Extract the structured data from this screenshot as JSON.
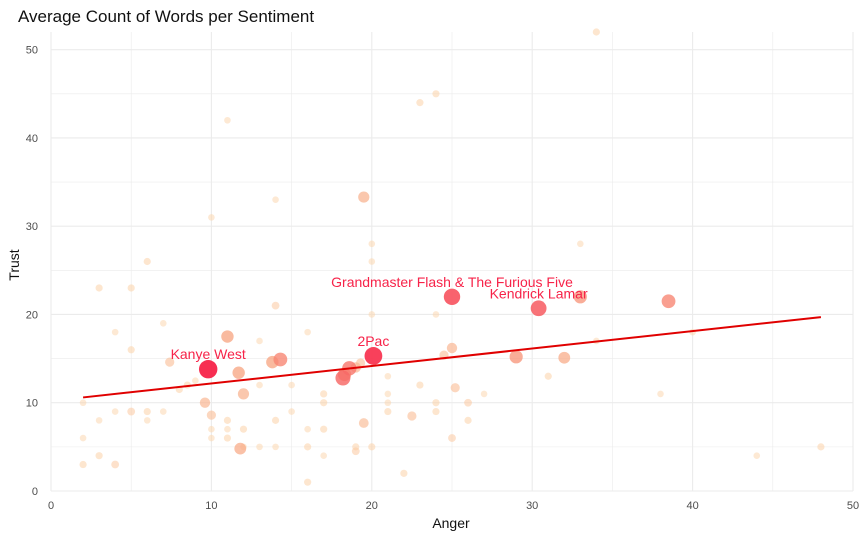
{
  "chart_data": {
    "type": "scatter",
    "title": "Average Count of Words per Sentiment",
    "xlabel": "Anger",
    "ylabel": "Trust",
    "xlim": [
      0,
      50
    ],
    "ylim": [
      0,
      52
    ],
    "xticks": [
      0,
      10,
      20,
      30,
      40,
      50
    ],
    "yticks": [
      0,
      10,
      20,
      30,
      40,
      50
    ],
    "grid": true,
    "colors": {
      "low": "#fde0b4",
      "mid": "#f7a07c",
      "high": "#f72349",
      "trend": "#e00000",
      "grid": "#ebebeb"
    },
    "trend_line": {
      "x": [
        2,
        48
      ],
      "y": [
        10.6,
        19.7
      ]
    },
    "points": [
      {
        "x": 34,
        "y": 52,
        "w": 0.15
      },
      {
        "x": 24,
        "y": 45,
        "w": 0.15
      },
      {
        "x": 23,
        "y": 44,
        "w": 0.15
      },
      {
        "x": 11,
        "y": 42,
        "w": 0.1
      },
      {
        "x": 19.5,
        "y": 33.3,
        "w": 0.45
      },
      {
        "x": 14,
        "y": 33,
        "w": 0.1
      },
      {
        "x": 10,
        "y": 31,
        "w": 0.1
      },
      {
        "x": 33,
        "y": 28,
        "w": 0.1
      },
      {
        "x": 20,
        "y": 28,
        "w": 0.1
      },
      {
        "x": 6,
        "y": 26,
        "w": 0.15
      },
      {
        "x": 20,
        "y": 26,
        "w": 0.1
      },
      {
        "x": 3,
        "y": 23,
        "w": 0.15
      },
      {
        "x": 5,
        "y": 23,
        "w": 0.15
      },
      {
        "x": 14,
        "y": 21,
        "w": 0.2
      },
      {
        "x": 24,
        "y": 20,
        "w": 0.1
      },
      {
        "x": 20,
        "y": 20,
        "w": 0.1
      },
      {
        "x": 7,
        "y": 19,
        "w": 0.1
      },
      {
        "x": 4,
        "y": 18,
        "w": 0.1
      },
      {
        "x": 16,
        "y": 18,
        "w": 0.1
      },
      {
        "x": 13,
        "y": 17,
        "w": 0.1
      },
      {
        "x": 11,
        "y": 17.5,
        "w": 0.55
      },
      {
        "x": 5,
        "y": 16,
        "w": 0.15
      },
      {
        "x": 25,
        "y": 16.2,
        "w": 0.4
      },
      {
        "x": 24.5,
        "y": 15.4,
        "w": 0.3
      },
      {
        "x": 29,
        "y": 15.2,
        "w": 0.6
      },
      {
        "x": 32,
        "y": 15.1,
        "w": 0.5
      },
      {
        "x": 38.5,
        "y": 21.5,
        "w": 0.65
      },
      {
        "x": 33,
        "y": 22,
        "w": 0.6
      },
      {
        "x": 14.3,
        "y": 14.9,
        "w": 0.65
      },
      {
        "x": 13.8,
        "y": 14.6,
        "w": 0.55
      },
      {
        "x": 7.4,
        "y": 14.6,
        "w": 0.3
      },
      {
        "x": 11.7,
        "y": 13.4,
        "w": 0.55
      },
      {
        "x": 19,
        "y": 14,
        "w": 0.4
      },
      {
        "x": 19.3,
        "y": 14.5,
        "w": 0.3
      },
      {
        "x": 18.6,
        "y": 13.9,
        "w": 0.7
      },
      {
        "x": 18.3,
        "y": 13.2,
        "w": 0.6
      },
      {
        "x": 18.2,
        "y": 12.8,
        "w": 0.75
      },
      {
        "x": 12,
        "y": 11,
        "w": 0.45
      },
      {
        "x": 8,
        "y": 11.5,
        "w": 0.15
      },
      {
        "x": 8.5,
        "y": 12,
        "w": 0.15
      },
      {
        "x": 9,
        "y": 12.5,
        "w": 0.1
      },
      {
        "x": 13,
        "y": 12,
        "w": 0.1
      },
      {
        "x": 15,
        "y": 12,
        "w": 0.1
      },
      {
        "x": 17,
        "y": 11,
        "w": 0.15
      },
      {
        "x": 17,
        "y": 10,
        "w": 0.15
      },
      {
        "x": 21,
        "y": 11,
        "w": 0.1
      },
      {
        "x": 21,
        "y": 13,
        "w": 0.1
      },
      {
        "x": 23,
        "y": 12,
        "w": 0.15
      },
      {
        "x": 25.2,
        "y": 11.7,
        "w": 0.3
      },
      {
        "x": 26,
        "y": 10,
        "w": 0.2
      },
      {
        "x": 27,
        "y": 11,
        "w": 0.1
      },
      {
        "x": 31,
        "y": 13,
        "w": 0.15
      },
      {
        "x": 38,
        "y": 11,
        "w": 0.1
      },
      {
        "x": 9.6,
        "y": 10,
        "w": 0.4
      },
      {
        "x": 10,
        "y": 8.6,
        "w": 0.3
      },
      {
        "x": 6,
        "y": 9,
        "w": 0.15
      },
      {
        "x": 7,
        "y": 9,
        "w": 0.1
      },
      {
        "x": 5,
        "y": 9,
        "w": 0.2
      },
      {
        "x": 4,
        "y": 9,
        "w": 0.1
      },
      {
        "x": 3,
        "y": 8,
        "w": 0.1
      },
      {
        "x": 6,
        "y": 8,
        "w": 0.1
      },
      {
        "x": 2,
        "y": 10,
        "w": 0.1
      },
      {
        "x": 2,
        "y": 6,
        "w": 0.1
      },
      {
        "x": 2,
        "y": 3,
        "w": 0.15
      },
      {
        "x": 3,
        "y": 4,
        "w": 0.15
      },
      {
        "x": 4,
        "y": 3,
        "w": 0.2
      },
      {
        "x": 10,
        "y": 7,
        "w": 0.1
      },
      {
        "x": 10,
        "y": 6,
        "w": 0.1
      },
      {
        "x": 11,
        "y": 8,
        "w": 0.15
      },
      {
        "x": 11,
        "y": 7,
        "w": 0.1
      },
      {
        "x": 11,
        "y": 6,
        "w": 0.15
      },
      {
        "x": 12,
        "y": 7,
        "w": 0.15
      },
      {
        "x": 12,
        "y": 5,
        "w": 0.1
      },
      {
        "x": 11.8,
        "y": 4.8,
        "w": 0.5
      },
      {
        "x": 13,
        "y": 5,
        "w": 0.1
      },
      {
        "x": 14,
        "y": 5,
        "w": 0.1
      },
      {
        "x": 14,
        "y": 8,
        "w": 0.15
      },
      {
        "x": 15,
        "y": 9,
        "w": 0.1
      },
      {
        "x": 16,
        "y": 7,
        "w": 0.1
      },
      {
        "x": 16,
        "y": 5,
        "w": 0.15
      },
      {
        "x": 17,
        "y": 7,
        "w": 0.15
      },
      {
        "x": 17,
        "y": 4,
        "w": 0.1
      },
      {
        "x": 16,
        "y": 1,
        "w": 0.15
      },
      {
        "x": 19,
        "y": 5,
        "w": 0.15
      },
      {
        "x": 19,
        "y": 4.5,
        "w": 0.2
      },
      {
        "x": 20,
        "y": 5,
        "w": 0.15
      },
      {
        "x": 19.5,
        "y": 7.7,
        "w": 0.35
      },
      {
        "x": 21,
        "y": 9,
        "w": 0.15
      },
      {
        "x": 21,
        "y": 10,
        "w": 0.1
      },
      {
        "x": 22.5,
        "y": 8.5,
        "w": 0.3
      },
      {
        "x": 22,
        "y": 2,
        "w": 0.15
      },
      {
        "x": 24,
        "y": 10,
        "w": 0.15
      },
      {
        "x": 24,
        "y": 9,
        "w": 0.15
      },
      {
        "x": 25,
        "y": 6,
        "w": 0.2
      },
      {
        "x": 26,
        "y": 8,
        "w": 0.15
      },
      {
        "x": 44,
        "y": 4,
        "w": 0.1
      },
      {
        "x": 48,
        "y": 5,
        "w": 0.15
      },
      {
        "x": 40,
        "y": 18,
        "w": 0.1
      },
      {
        "x": 34,
        "y": 17,
        "w": 0.1
      },
      {
        "x": 9.8,
        "y": 13.8,
        "w": 1.0
      },
      {
        "x": 20.1,
        "y": 15.3,
        "w": 0.95
      },
      {
        "x": 25,
        "y": 22,
        "w": 0.85
      },
      {
        "x": 30.4,
        "y": 20.7,
        "w": 0.8
      }
    ],
    "annotations": [
      {
        "text": "Kanye West",
        "x": 9.8,
        "y": 13.8
      },
      {
        "text": "2Pac",
        "x": 20.1,
        "y": 15.3
      },
      {
        "text": "Grandmaster Flash & The Furious Five",
        "x": 25,
        "y": 22
      },
      {
        "text": "Kendrick Lamar",
        "x": 30.4,
        "y": 20.7
      }
    ]
  }
}
